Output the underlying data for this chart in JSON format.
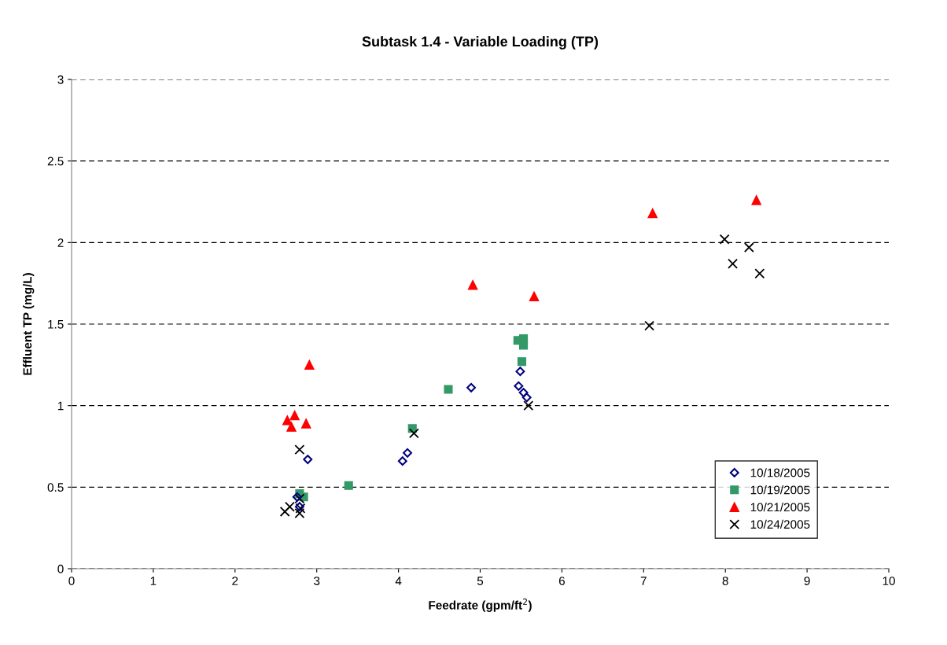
{
  "chart_data": {
    "type": "scatter",
    "title": "Subtask 1.4 - Variable Loading (TP)",
    "xlabel": "Feedrate (gpm/ft$^{2}$)",
    "ylabel": "Effluent TP (mg/L)",
    "xlim": [
      0,
      10
    ],
    "xticks": [
      0,
      1,
      2,
      3,
      4,
      5,
      6,
      7,
      8,
      9,
      10
    ],
    "ylim": [
      0,
      3
    ],
    "yticks": [
      0,
      0.5,
      1,
      1.5,
      2,
      2.5,
      3
    ],
    "grid": "y",
    "legend": "lower right",
    "series": [
      {
        "name": "10/18/2005",
        "color": "#000080",
        "marker": "diamond",
        "x": [
          2.89,
          2.76,
          2.79,
          4.05,
          4.11,
          4.89,
          5.49,
          5.47,
          5.53,
          5.57
        ],
        "values": [
          0.67,
          0.44,
          0.38,
          0.66,
          0.71,
          1.11,
          1.21,
          1.12,
          1.08,
          1.05
        ]
      },
      {
        "name": "10/19/2005",
        "color": "#339966",
        "marker": "square",
        "x": [
          2.79,
          2.84,
          3.39,
          4.61,
          4.17,
          5.51,
          5.46,
          5.53,
          5.53
        ],
        "values": [
          0.46,
          0.44,
          0.51,
          1.1,
          0.86,
          1.27,
          1.4,
          1.41,
          1.37
        ]
      },
      {
        "name": "10/21/2005",
        "color": "#ff0000",
        "marker": "triangle",
        "x": [
          2.64,
          2.73,
          2.69,
          2.87,
          2.91,
          4.91,
          5.66,
          7.11,
          8.38
        ],
        "values": [
          0.91,
          0.94,
          0.87,
          0.89,
          1.25,
          1.74,
          1.67,
          2.18,
          2.26
        ]
      },
      {
        "name": "10/24/2005",
        "color": "#000000",
        "marker": "cross",
        "x": [
          2.79,
          2.61,
          2.67,
          2.79,
          2.8,
          2.79,
          4.19,
          5.59,
          7.07,
          7.99,
          8.29,
          8.09,
          8.42
        ],
        "values": [
          0.73,
          0.35,
          0.38,
          0.43,
          0.37,
          0.34,
          0.83,
          1.0,
          1.49,
          2.02,
          1.97,
          1.87,
          1.81
        ]
      }
    ]
  }
}
